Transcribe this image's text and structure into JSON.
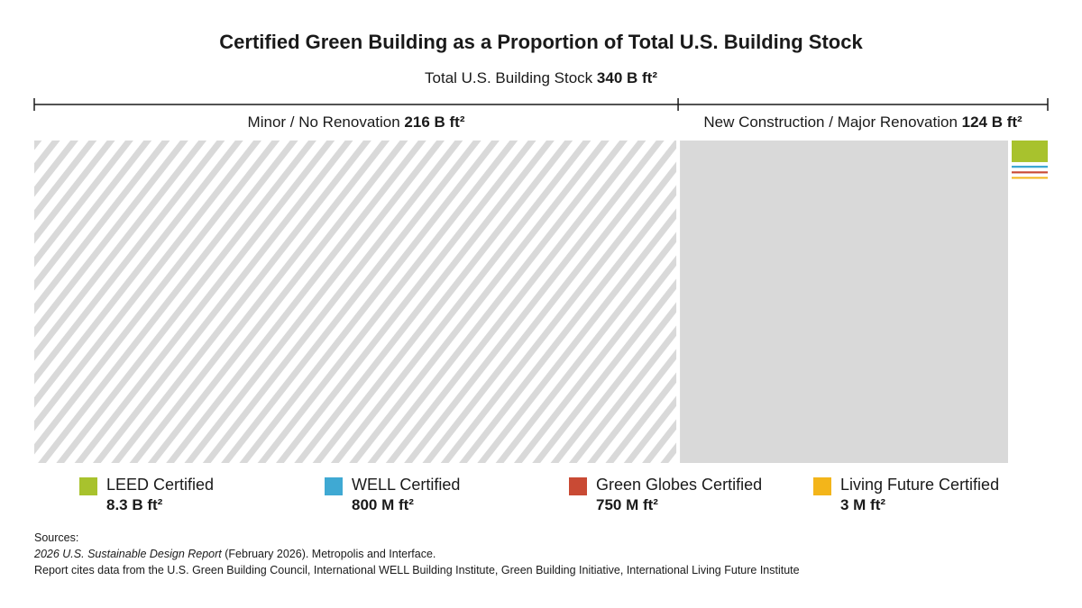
{
  "title": "Certified Green Building as a Proportion of Total U.S. Building Stock",
  "subtitle": {
    "label": "Total U.S. Building Stock",
    "value": "340 B ft²"
  },
  "chart_data": {
    "type": "bar",
    "title": "Certified Green Building as a Proportion of Total U.S. Building Stock",
    "unit": "ft²",
    "total": {
      "label": "Total U.S. Building Stock",
      "value": 340000000000,
      "display": "340 B ft²"
    },
    "segments": [
      {
        "label": "Minor / No Renovation",
        "value": 216000000000,
        "display": "216 B ft²",
        "pattern": "hatched",
        "color": "#d9d9d9"
      },
      {
        "label": "New Construction / Major Renovation",
        "value": 124000000000,
        "display": "124 B ft²",
        "pattern": "solid",
        "color": "#d9d9d9"
      }
    ],
    "certifications": [
      {
        "label": "LEED Certified",
        "value": 8300000000,
        "display": "8.3 B ft²",
        "color": "#a8c22d"
      },
      {
        "label": "WELL Certified",
        "value": 800000000,
        "display": "800 M ft²",
        "color": "#3fa9d3"
      },
      {
        "label": "Green Globes Certified",
        "value": 750000000,
        "display": "750 M ft²",
        "color": "#c94a34"
      },
      {
        "label": "Living Future Certified",
        "value": 3000000,
        "display": "3 M ft²",
        "color": "#f3b51a"
      }
    ]
  },
  "sources": {
    "heading": "Sources:",
    "report_title": "2026 U.S. Sustainable Design Report",
    "report_rest": " (February 2026).  Metropolis and Interface.",
    "note": "Report cites data from the U.S. Green Building Council, International WELL Building Institute, Green Building Initiative, International Living Future Institute"
  }
}
